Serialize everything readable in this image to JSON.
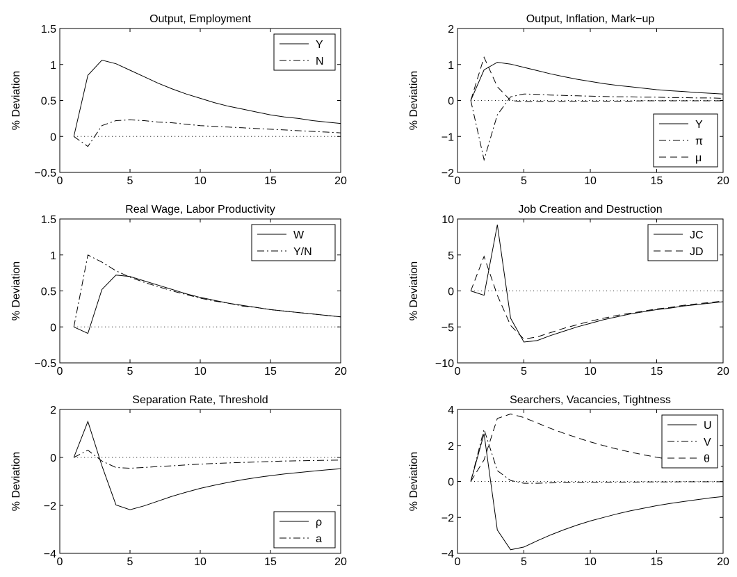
{
  "chart_data": [
    {
      "type": "line",
      "title": "Output, Employment",
      "xlabel": "",
      "ylabel": "% Deviation",
      "xlim": [
        0,
        20
      ],
      "ylim": [
        -0.5,
        1.5
      ],
      "xticks": [
        "0",
        "5",
        "10",
        "15",
        "20"
      ],
      "yticks": [
        "−0.5",
        "0",
        "0.5",
        "1",
        "1.5"
      ],
      "legend_position": "top-right",
      "series": [
        {
          "name": "Y",
          "style": "solid",
          "x": [
            1,
            2,
            3,
            4,
            5,
            6,
            7,
            8,
            9,
            10,
            11,
            12,
            13,
            14,
            15,
            16,
            17,
            18,
            19,
            20
          ],
          "values": [
            0,
            0.85,
            1.06,
            1.01,
            0.92,
            0.83,
            0.74,
            0.66,
            0.59,
            0.53,
            0.47,
            0.42,
            0.38,
            0.34,
            0.3,
            0.27,
            0.25,
            0.22,
            0.2,
            0.18
          ]
        },
        {
          "name": "N",
          "style": "dashdot",
          "x": [
            1,
            2,
            3,
            4,
            5,
            6,
            7,
            8,
            9,
            10,
            11,
            12,
            13,
            14,
            15,
            16,
            17,
            18,
            19,
            20
          ],
          "values": [
            0,
            -0.14,
            0.15,
            0.22,
            0.23,
            0.22,
            0.2,
            0.19,
            0.17,
            0.15,
            0.14,
            0.13,
            0.12,
            0.11,
            0.1,
            0.09,
            0.08,
            0.07,
            0.06,
            0.05
          ]
        },
        {
          "name": "",
          "style": "dotted",
          "x": [
            1,
            20
          ],
          "values": [
            0,
            0
          ]
        }
      ]
    },
    {
      "type": "line",
      "title": "Output, Inflation, Mark−up",
      "xlabel": "",
      "ylabel": "% Deviation",
      "xlim": [
        0,
        20
      ],
      "ylim": [
        -2,
        2
      ],
      "xticks": [
        "0",
        "5",
        "10",
        "15",
        "20"
      ],
      "yticks": [
        "−2",
        "−1",
        "0",
        "1",
        "2"
      ],
      "legend_position": "bottom-right",
      "series": [
        {
          "name": "Y",
          "style": "solid",
          "x": [
            1,
            2,
            3,
            4,
            5,
            6,
            7,
            8,
            9,
            10,
            11,
            12,
            13,
            14,
            15,
            16,
            17,
            18,
            19,
            20
          ],
          "values": [
            0,
            0.85,
            1.06,
            1.01,
            0.92,
            0.83,
            0.74,
            0.66,
            0.59,
            0.53,
            0.47,
            0.42,
            0.38,
            0.34,
            0.3,
            0.27,
            0.25,
            0.22,
            0.2,
            0.18
          ]
        },
        {
          "name": "π",
          "style": "dashdot",
          "x": [
            1,
            2,
            3,
            4,
            5,
            6,
            7,
            8,
            9,
            10,
            11,
            12,
            13,
            14,
            15,
            16,
            17,
            18,
            19,
            20
          ],
          "values": [
            0,
            -1.65,
            -0.4,
            0.1,
            0.18,
            0.17,
            0.15,
            0.14,
            0.13,
            0.12,
            0.11,
            0.1,
            0.1,
            0.09,
            0.09,
            0.08,
            0.08,
            0.07,
            0.07,
            0.06
          ]
        },
        {
          "name": "μ",
          "style": "dashed",
          "x": [
            1,
            2,
            3,
            4,
            5,
            6,
            7,
            8,
            9,
            10,
            11,
            12,
            13,
            14,
            15,
            16,
            17,
            18,
            19,
            20
          ],
          "values": [
            0,
            1.2,
            0.38,
            0.0,
            -0.04,
            -0.03,
            -0.03,
            -0.03,
            -0.02,
            -0.02,
            -0.02,
            -0.02,
            -0.02,
            -0.01,
            -0.01,
            -0.01,
            -0.01,
            -0.01,
            -0.01,
            -0.01
          ]
        },
        {
          "name": "",
          "style": "dotted",
          "x": [
            1,
            20
          ],
          "values": [
            0,
            0
          ]
        }
      ]
    },
    {
      "type": "line",
      "title": "Real Wage, Labor Productivity",
      "xlabel": "",
      "ylabel": "% Deviation",
      "xlim": [
        0,
        20
      ],
      "ylim": [
        -0.5,
        1.5
      ],
      "xticks": [
        "0",
        "5",
        "10",
        "15",
        "20"
      ],
      "yticks": [
        "−0.5",
        "0",
        "0.5",
        "1",
        "1.5"
      ],
      "legend_position": "top-right",
      "series": [
        {
          "name": "W",
          "style": "solid",
          "x": [
            1,
            2,
            3,
            4,
            5,
            6,
            7,
            8,
            9,
            10,
            11,
            12,
            13,
            14,
            15,
            16,
            17,
            18,
            19,
            20
          ],
          "values": [
            0,
            -0.09,
            0.52,
            0.72,
            0.7,
            0.64,
            0.58,
            0.52,
            0.46,
            0.41,
            0.37,
            0.33,
            0.3,
            0.27,
            0.24,
            0.22,
            0.2,
            0.18,
            0.16,
            0.14
          ]
        },
        {
          "name": "Y/N",
          "style": "dashdot",
          "x": [
            1,
            2,
            3,
            4,
            5,
            6,
            7,
            8,
            9,
            10,
            11,
            12,
            13,
            14,
            15,
            16,
            17,
            18,
            19,
            20
          ],
          "values": [
            0,
            1.0,
            0.9,
            0.78,
            0.69,
            0.62,
            0.56,
            0.5,
            0.45,
            0.4,
            0.36,
            0.33,
            0.29,
            0.27,
            0.24,
            0.22,
            0.2,
            0.18,
            0.16,
            0.14
          ]
        },
        {
          "name": "",
          "style": "dotted",
          "x": [
            1,
            20
          ],
          "values": [
            0,
            0
          ]
        }
      ]
    },
    {
      "type": "line",
      "title": "Job Creation and Destruction",
      "xlabel": "",
      "ylabel": "% Deviation",
      "xlim": [
        0,
        20
      ],
      "ylim": [
        -10,
        10
      ],
      "xticks": [
        "0",
        "5",
        "10",
        "15",
        "20"
      ],
      "yticks": [
        "−10",
        "−5",
        "0",
        "5",
        "10"
      ],
      "legend_position": "top-right",
      "series": [
        {
          "name": "JC",
          "style": "solid",
          "x": [
            1,
            2,
            3,
            4,
            5,
            6,
            7,
            8,
            9,
            10,
            11,
            12,
            13,
            14,
            15,
            16,
            17,
            18,
            19,
            20
          ],
          "values": [
            0,
            -0.6,
            9.2,
            -3.8,
            -7.1,
            -6.9,
            -6.2,
            -5.6,
            -5.0,
            -4.5,
            -4.0,
            -3.6,
            -3.2,
            -2.9,
            -2.6,
            -2.4,
            -2.1,
            -1.9,
            -1.7,
            -1.5
          ]
        },
        {
          "name": "JD",
          "style": "dashed",
          "x": [
            1,
            2,
            3,
            4,
            5,
            6,
            7,
            8,
            9,
            10,
            11,
            12,
            13,
            14,
            15,
            16,
            17,
            18,
            19,
            20
          ],
          "values": [
            0,
            4.8,
            -0.6,
            -4.8,
            -6.7,
            -6.4,
            -5.8,
            -5.2,
            -4.7,
            -4.2,
            -3.8,
            -3.4,
            -3.1,
            -2.8,
            -2.5,
            -2.3,
            -2.0,
            -1.8,
            -1.6,
            -1.4
          ]
        },
        {
          "name": "",
          "style": "dotted",
          "x": [
            1,
            20
          ],
          "values": [
            0,
            0
          ]
        }
      ]
    },
    {
      "type": "line",
      "title": "Separation Rate, Threshold",
      "xlabel": "",
      "ylabel": "% Deviation",
      "xlim": [
        0,
        20
      ],
      "ylim": [
        -4,
        2
      ],
      "xticks": [
        "0",
        "5",
        "10",
        "15",
        "20"
      ],
      "yticks": [
        "−4",
        "−2",
        "0",
        "2"
      ],
      "legend_position": "bottom-right",
      "series": [
        {
          "name": "ρ",
          "style": "solid",
          "x": [
            1,
            2,
            3,
            4,
            5,
            6,
            7,
            8,
            9,
            10,
            11,
            12,
            13,
            14,
            15,
            16,
            17,
            18,
            19,
            20
          ],
          "values": [
            0,
            1.5,
            -0.35,
            -1.98,
            -2.18,
            -2.02,
            -1.82,
            -1.62,
            -1.45,
            -1.29,
            -1.16,
            -1.04,
            -0.93,
            -0.84,
            -0.76,
            -0.69,
            -0.63,
            -0.57,
            -0.52,
            -0.47
          ]
        },
        {
          "name": "a",
          "style": "dashdot",
          "x": [
            1,
            2,
            3,
            4,
            5,
            6,
            7,
            8,
            9,
            10,
            11,
            12,
            13,
            14,
            15,
            16,
            17,
            18,
            19,
            20
          ],
          "values": [
            0,
            0.3,
            -0.15,
            -0.42,
            -0.45,
            -0.42,
            -0.38,
            -0.35,
            -0.31,
            -0.28,
            -0.25,
            -0.23,
            -0.21,
            -0.19,
            -0.17,
            -0.15,
            -0.14,
            -0.13,
            -0.12,
            -0.11
          ]
        },
        {
          "name": "",
          "style": "dotted",
          "x": [
            1,
            20
          ],
          "values": [
            0,
            0
          ]
        }
      ]
    },
    {
      "type": "line",
      "title": "Searchers, Vacancies, Tightness",
      "xlabel": "",
      "ylabel": "% Deviation",
      "xlim": [
        0,
        20
      ],
      "ylim": [
        -4,
        4
      ],
      "xticks": [
        "0",
        "5",
        "10",
        "15",
        "20"
      ],
      "yticks": [
        "−4",
        "−2",
        "0",
        "2",
        "4"
      ],
      "legend_position": "top-right",
      "series": [
        {
          "name": "U",
          "style": "solid",
          "x": [
            1,
            2,
            3,
            4,
            5,
            6,
            7,
            8,
            9,
            10,
            11,
            12,
            13,
            14,
            15,
            16,
            17,
            18,
            19,
            20
          ],
          "values": [
            0,
            2.65,
            -2.7,
            -3.8,
            -3.65,
            -3.3,
            -2.98,
            -2.69,
            -2.43,
            -2.2,
            -2.0,
            -1.81,
            -1.64,
            -1.49,
            -1.35,
            -1.23,
            -1.12,
            -1.02,
            -0.92,
            -0.84
          ]
        },
        {
          "name": "V",
          "style": "dashdot",
          "x": [
            1,
            2,
            3,
            4,
            5,
            6,
            7,
            8,
            9,
            10,
            11,
            12,
            13,
            14,
            15,
            16,
            17,
            18,
            19,
            20
          ],
          "values": [
            0,
            2.9,
            0.6,
            0.05,
            -0.1,
            -0.1,
            -0.08,
            -0.07,
            -0.06,
            -0.05,
            -0.05,
            -0.04,
            -0.04,
            -0.03,
            -0.03,
            -0.03,
            -0.02,
            -0.02,
            -0.02,
            -0.02
          ]
        },
        {
          "name": "θ",
          "style": "dashed",
          "x": [
            1,
            2,
            3,
            4,
            5,
            6,
            7,
            8,
            9,
            10,
            11,
            12,
            13,
            14,
            15,
            16,
            17,
            18,
            19,
            20
          ],
          "values": [
            0,
            1.2,
            3.5,
            3.75,
            3.55,
            3.25,
            2.95,
            2.68,
            2.43,
            2.2,
            1.99,
            1.8,
            1.63,
            1.48,
            1.34,
            1.22,
            1.11,
            1.01,
            0.92,
            0.84
          ]
        },
        {
          "name": "",
          "style": "dotted",
          "x": [
            1,
            20
          ],
          "values": [
            0,
            0
          ]
        }
      ]
    }
  ]
}
